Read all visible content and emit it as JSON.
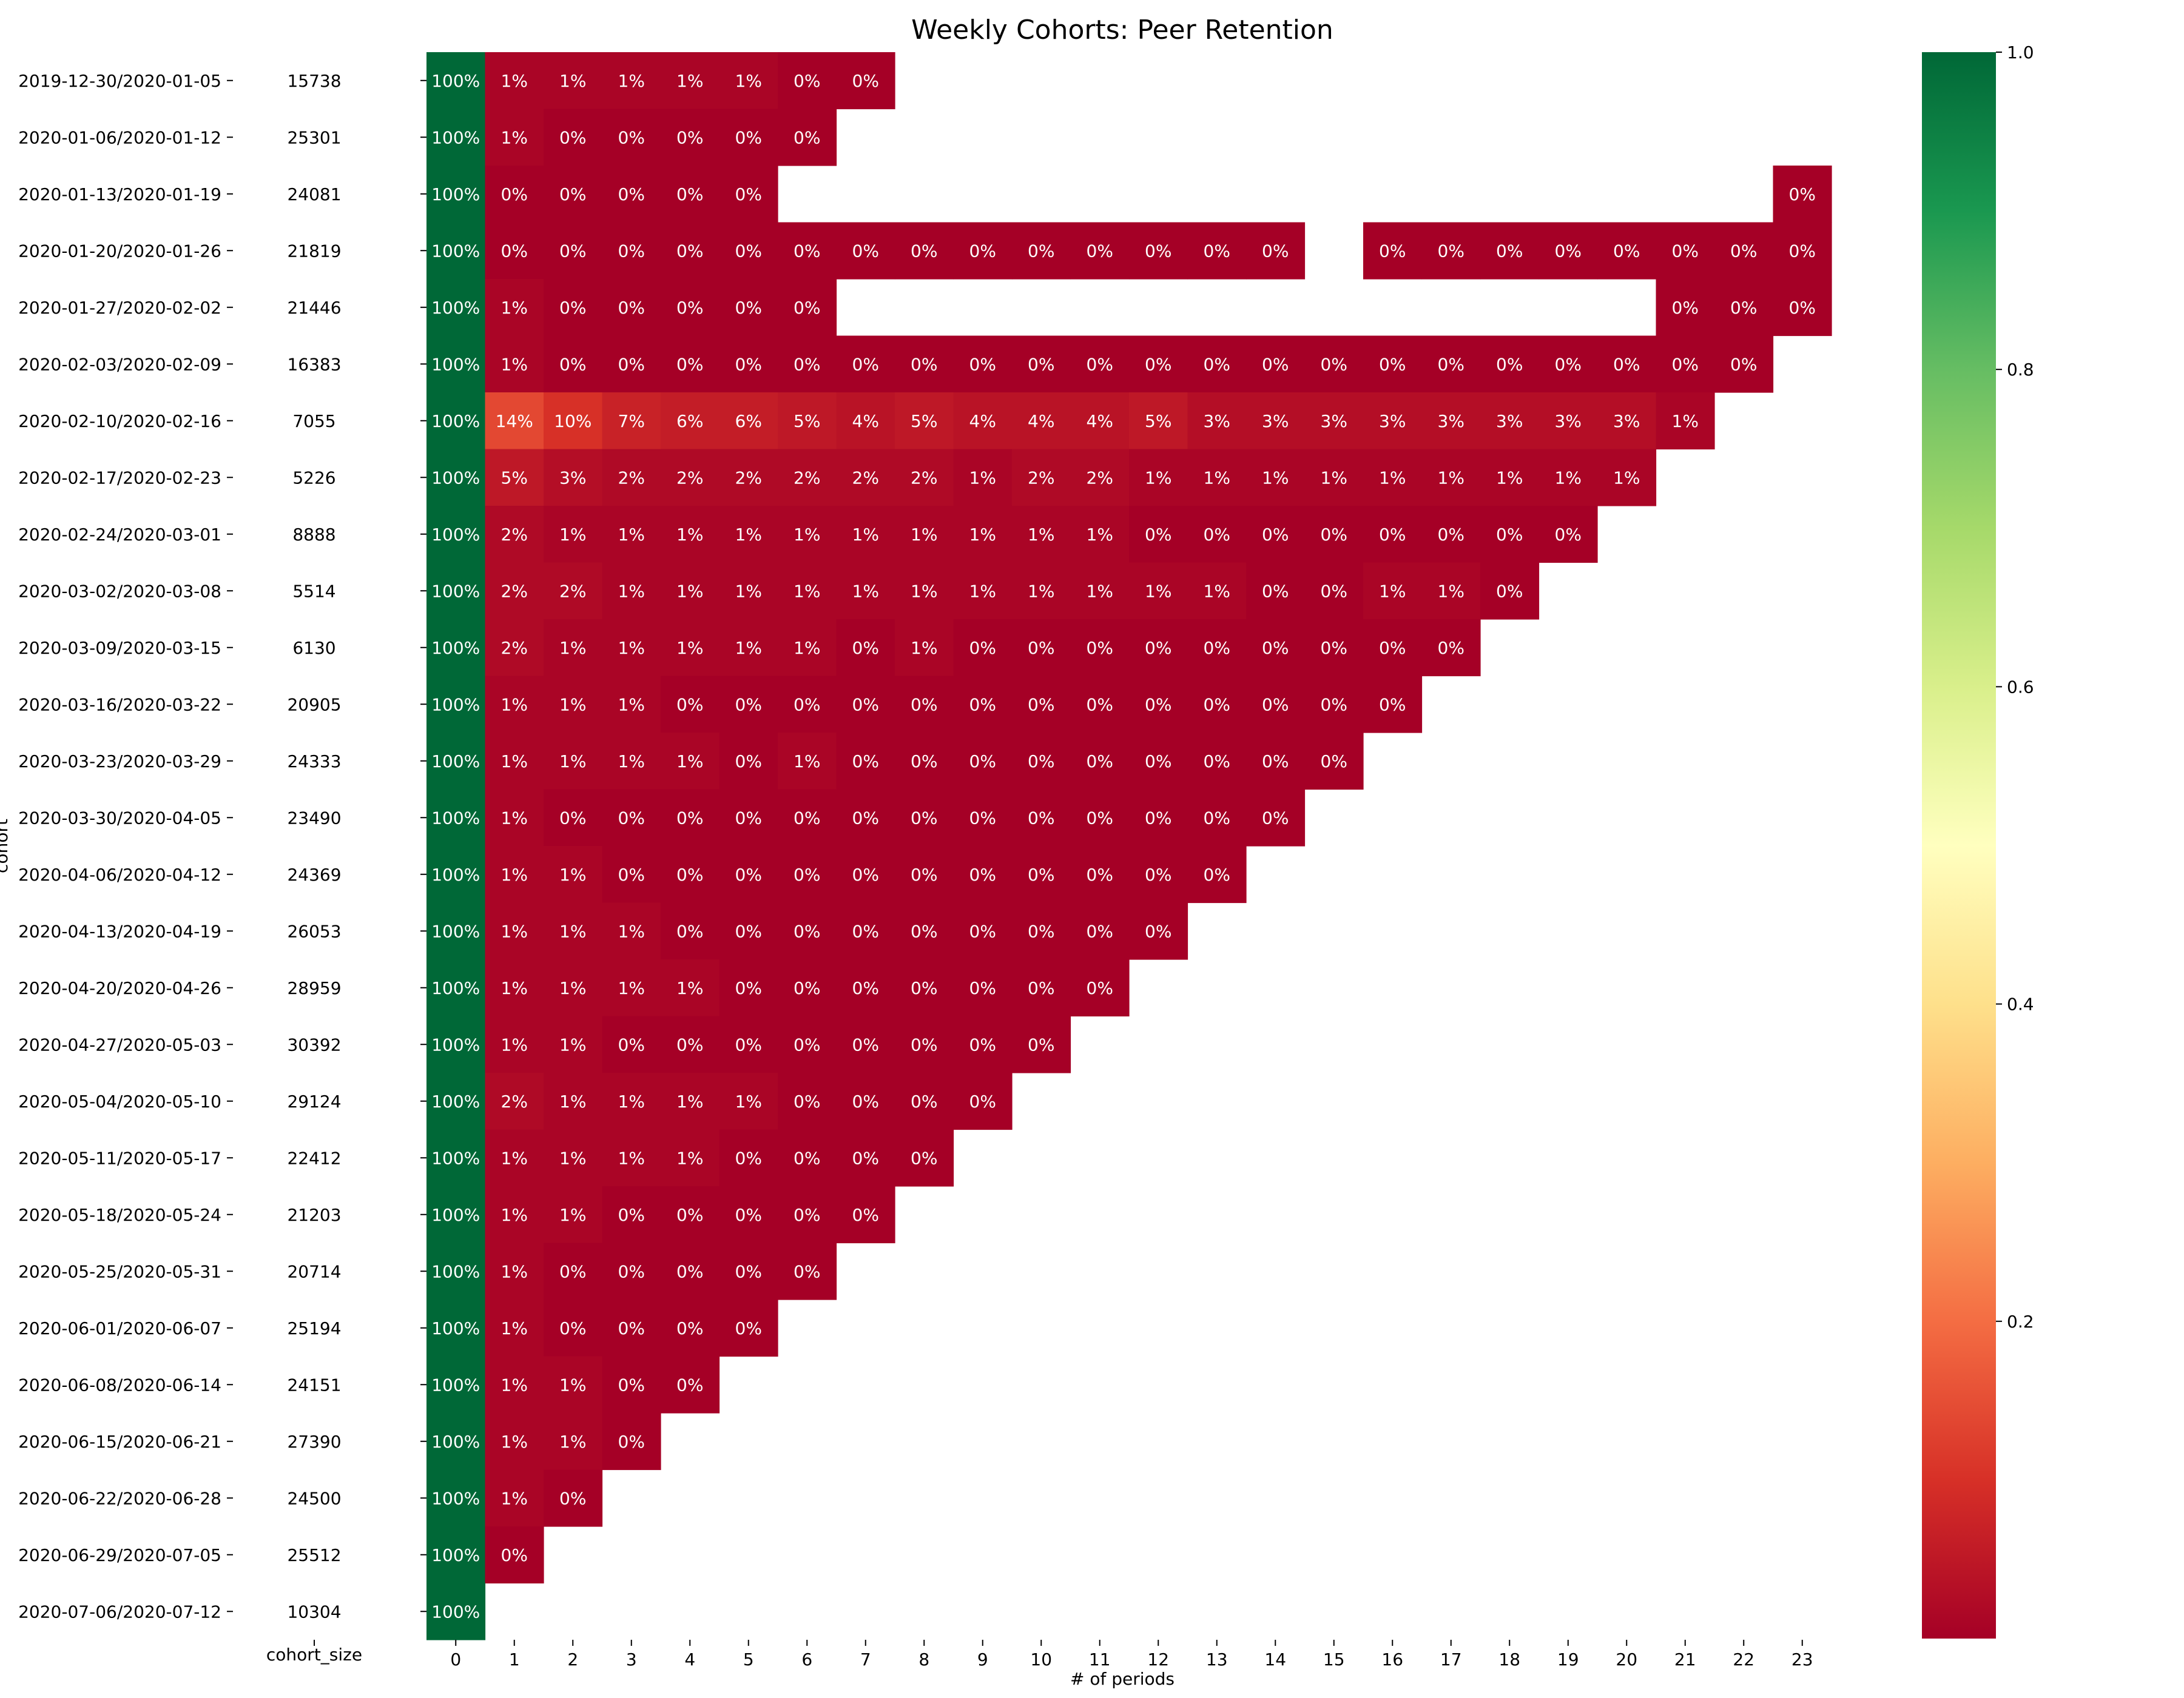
{
  "chart_data": {
    "type": "heatmap",
    "title": "Weekly Cohorts: Peer Retention",
    "xlabel": "# of periods",
    "ylabel": "cohort",
    "size_column_label": "cohort_size",
    "periods": [
      "0",
      "1",
      "2",
      "3",
      "4",
      "5",
      "6",
      "7",
      "8",
      "9",
      "10",
      "11",
      "12",
      "13",
      "14",
      "15",
      "16",
      "17",
      "18",
      "19",
      "20",
      "21",
      "22",
      "23"
    ],
    "cohorts": [
      "2019-12-30/2020-01-05",
      "2020-01-06/2020-01-12",
      "2020-01-13/2020-01-19",
      "2020-01-20/2020-01-26",
      "2020-01-27/2020-02-02",
      "2020-02-03/2020-02-09",
      "2020-02-10/2020-02-16",
      "2020-02-17/2020-02-23",
      "2020-02-24/2020-03-01",
      "2020-03-02/2020-03-08",
      "2020-03-09/2020-03-15",
      "2020-03-16/2020-03-22",
      "2020-03-23/2020-03-29",
      "2020-03-30/2020-04-05",
      "2020-04-06/2020-04-12",
      "2020-04-13/2020-04-19",
      "2020-04-20/2020-04-26",
      "2020-04-27/2020-05-03",
      "2020-05-04/2020-05-10",
      "2020-05-11/2020-05-17",
      "2020-05-18/2020-05-24",
      "2020-05-25/2020-05-31",
      "2020-06-01/2020-06-07",
      "2020-06-08/2020-06-14",
      "2020-06-15/2020-06-21",
      "2020-06-22/2020-06-28",
      "2020-06-29/2020-07-05",
      "2020-07-06/2020-07-12"
    ],
    "cohort_sizes": [
      "15738",
      "25301",
      "24081",
      "21819",
      "21446",
      "16383",
      "7055",
      "5226",
      "8888",
      "5514",
      "6130",
      "20905",
      "24333",
      "23490",
      "24369",
      "26053",
      "28959",
      "30392",
      "29124",
      "22412",
      "21203",
      "20714",
      "25194",
      "24151",
      "27390",
      "24500",
      "25512",
      "10304"
    ],
    "values": [
      [
        1,
        0.01,
        0.01,
        0.01,
        0.01,
        0.01,
        0,
        0
      ],
      [
        1,
        0.01,
        0,
        0,
        0,
        0,
        0
      ],
      [
        1,
        0,
        0,
        0,
        0,
        0,
        null,
        null,
        null,
        null,
        null,
        null,
        null,
        null,
        null,
        null,
        null,
        null,
        null,
        null,
        null,
        null,
        null,
        0
      ],
      [
        1,
        0,
        0,
        0,
        0,
        0,
        0,
        0,
        0,
        0,
        0,
        0,
        0,
        0,
        0,
        null,
        0,
        0,
        0,
        0,
        0,
        0,
        0,
        0
      ],
      [
        1,
        0.01,
        0,
        0,
        0,
        0,
        0,
        null,
        null,
        null,
        null,
        null,
        null,
        null,
        null,
        null,
        null,
        null,
        null,
        null,
        null,
        0,
        0,
        0
      ],
      [
        1,
        0.01,
        0,
        0,
        0,
        0,
        0,
        0,
        0,
        0,
        0,
        0,
        0,
        0,
        0,
        0,
        0,
        0,
        0,
        0,
        0,
        0,
        0
      ],
      [
        1,
        0.14,
        0.1,
        0.07,
        0.06,
        0.06,
        0.05,
        0.04,
        0.05,
        0.04,
        0.04,
        0.04,
        0.05,
        0.03,
        0.03,
        0.03,
        0.03,
        0.03,
        0.03,
        0.03,
        0.03,
        0.01
      ],
      [
        1,
        0.05,
        0.03,
        0.02,
        0.02,
        0.02,
        0.02,
        0.02,
        0.02,
        0.01,
        0.02,
        0.02,
        0.01,
        0.01,
        0.01,
        0.01,
        0.01,
        0.01,
        0.01,
        0.01,
        0.01
      ],
      [
        1,
        0.02,
        0.01,
        0.01,
        0.01,
        0.01,
        0.01,
        0.01,
        0.01,
        0.01,
        0.01,
        0.01,
        0,
        0,
        0,
        0,
        0,
        0,
        0,
        0
      ],
      [
        1,
        0.02,
        0.02,
        0.01,
        0.01,
        0.01,
        0.01,
        0.01,
        0.01,
        0.01,
        0.01,
        0.01,
        0.01,
        0.01,
        0,
        0,
        0.01,
        0.01,
        0
      ],
      [
        1,
        0.02,
        0.01,
        0.01,
        0.01,
        0.01,
        0.01,
        0,
        0.01,
        0,
        0,
        0,
        0,
        0,
        0,
        0,
        0,
        0
      ],
      [
        1,
        0.01,
        0.01,
        0.01,
        0,
        0,
        0,
        0,
        0,
        0,
        0,
        0,
        0,
        0,
        0,
        0,
        0
      ],
      [
        1,
        0.01,
        0.01,
        0.01,
        0.01,
        0,
        0.01,
        0,
        0,
        0,
        0,
        0,
        0,
        0,
        0,
        0
      ],
      [
        1,
        0.01,
        0,
        0,
        0,
        0,
        0,
        0,
        0,
        0,
        0,
        0,
        0,
        0,
        0
      ],
      [
        1,
        0.01,
        0.01,
        0,
        0,
        0,
        0,
        0,
        0,
        0,
        0,
        0,
        0,
        0
      ],
      [
        1,
        0.01,
        0.01,
        0.01,
        0,
        0,
        0,
        0,
        0,
        0,
        0,
        0,
        0
      ],
      [
        1,
        0.01,
        0.01,
        0.01,
        0.01,
        0,
        0,
        0,
        0,
        0,
        0,
        0
      ],
      [
        1,
        0.01,
        0.01,
        0,
        0,
        0,
        0,
        0,
        0,
        0,
        0
      ],
      [
        1,
        0.02,
        0.01,
        0.01,
        0.01,
        0.01,
        0,
        0,
        0,
        0
      ],
      [
        1,
        0.01,
        0.01,
        0.01,
        0.01,
        0,
        0,
        0,
        0
      ],
      [
        1,
        0.01,
        0.01,
        0,
        0,
        0,
        0,
        0
      ],
      [
        1,
        0.01,
        0,
        0,
        0,
        0,
        0
      ],
      [
        1,
        0.01,
        0,
        0,
        0,
        0
      ],
      [
        1,
        0.01,
        0.01,
        0,
        0
      ],
      [
        1,
        0.01,
        0.01,
        0
      ],
      [
        1,
        0.01,
        0
      ],
      [
        1,
        0
      ],
      [
        1
      ]
    ],
    "colormap": "RdYlGn",
    "color_range": [
      0,
      1
    ],
    "colorbar_ticks": [
      "0.2",
      "0.4",
      "0.6",
      "0.8",
      "1.0"
    ],
    "grid": false,
    "annotation_format": "percent"
  }
}
